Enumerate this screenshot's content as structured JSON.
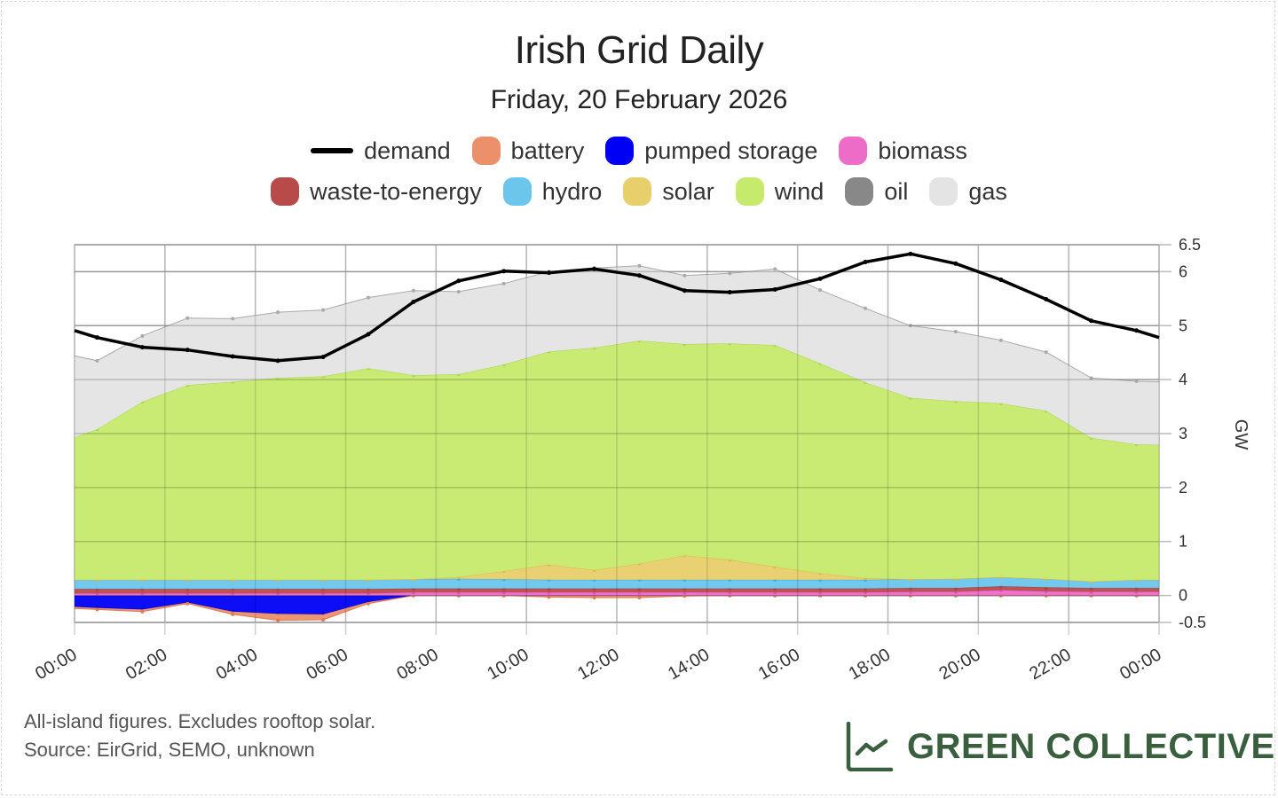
{
  "header": {
    "title": "Irish Grid Daily",
    "subtitle": "Friday, 20 February 2026"
  },
  "legend": [
    {
      "key": "demand",
      "label": "demand",
      "color": "#000000",
      "kind": "line"
    },
    {
      "key": "battery",
      "label": "battery",
      "color": "#ec906c",
      "kind": "area"
    },
    {
      "key": "pumped_storage",
      "label": "pumped storage",
      "color": "#0000f5",
      "kind": "area"
    },
    {
      "key": "biomass",
      "label": "biomass",
      "color": "#ec6cc8",
      "kind": "area"
    },
    {
      "key": "waste_to_energy",
      "label": "waste-to-energy",
      "color": "#b94a4a",
      "kind": "area"
    },
    {
      "key": "hydro",
      "label": "hydro",
      "color": "#6cc6ec",
      "kind": "area"
    },
    {
      "key": "solar",
      "label": "solar",
      "color": "#e8cf6c",
      "kind": "area"
    },
    {
      "key": "wind",
      "label": "wind",
      "color": "#c6ea6c",
      "kind": "area"
    },
    {
      "key": "oil",
      "label": "oil",
      "color": "#888888",
      "kind": "area"
    },
    {
      "key": "gas",
      "label": "gas",
      "color": "#e4e4e4",
      "kind": "area"
    }
  ],
  "chart_data": {
    "type": "area",
    "title": "Irish Grid Daily",
    "subtitle": "Friday, 20 February 2026",
    "xlabel": "",
    "ylabel": "GW",
    "ylim": [
      -0.5,
      6.5
    ],
    "yticks": [
      -0.5,
      0,
      1,
      2,
      3,
      4,
      5,
      6,
      6.5
    ],
    "ytick_labels": [
      "-0.5",
      "0",
      "1",
      "2",
      "3",
      "4",
      "5",
      "6",
      "6.5"
    ],
    "xlim_hours": [
      0,
      24
    ],
    "xtick_labels": [
      "00:00",
      "02:00",
      "04:00",
      "06:00",
      "08:00",
      "10:00",
      "12:00",
      "14:00",
      "16:00",
      "18:00",
      "20:00",
      "22:00",
      "00:00"
    ],
    "grid": true,
    "stacked": true,
    "legend_position": "top",
    "x_hours": [
      0,
      0.5,
      1.5,
      2.5,
      3.5,
      4.5,
      5.5,
      6.5,
      7.5,
      8.5,
      9.5,
      10.5,
      11.5,
      12.5,
      13.5,
      14.5,
      15.5,
      16.5,
      17.5,
      18.5,
      19.5,
      20.5,
      21.5,
      22.5,
      23.5,
      24
    ],
    "demand": [
      4.91,
      4.78,
      4.6,
      4.55,
      4.43,
      4.35,
      4.42,
      4.84,
      5.44,
      5.83,
      6.01,
      5.98,
      6.05,
      5.93,
      5.65,
      5.62,
      5.67,
      5.87,
      6.18,
      6.33,
      6.15,
      5.85,
      5.49,
      5.09,
      4.91,
      4.78
    ],
    "series": [
      {
        "name": "pumped storage",
        "key": "pumped_storage",
        "values": [
          -0.21,
          -0.23,
          -0.26,
          -0.13,
          -0.3,
          -0.34,
          -0.35,
          -0.12,
          0.0,
          0.0,
          0.0,
          0.0,
          0.0,
          0.0,
          0.0,
          0.0,
          0.0,
          0.0,
          0.0,
          0.0,
          0.0,
          0.0,
          0.0,
          0.0,
          0.0,
          0.0
        ]
      },
      {
        "name": "battery",
        "key": "battery",
        "values": [
          -0.03,
          -0.03,
          -0.04,
          -0.02,
          -0.05,
          -0.12,
          -0.1,
          -0.03,
          0.0,
          0.0,
          0.0,
          -0.03,
          -0.04,
          -0.04,
          -0.01,
          0.0,
          0.0,
          0.0,
          0.0,
          0.0,
          0.0,
          0.0,
          0.0,
          0.0,
          0.0,
          0.0
        ]
      },
      {
        "name": "biomass",
        "key": "biomass",
        "values": [
          0.04,
          0.04,
          0.04,
          0.04,
          0.04,
          0.04,
          0.04,
          0.04,
          0.06,
          0.06,
          0.06,
          0.06,
          0.06,
          0.06,
          0.06,
          0.06,
          0.06,
          0.06,
          0.06,
          0.07,
          0.07,
          0.1,
          0.08,
          0.07,
          0.07,
          0.07
        ]
      },
      {
        "name": "waste-to-energy",
        "key": "waste_to_energy",
        "values": [
          0.08,
          0.08,
          0.08,
          0.08,
          0.08,
          0.08,
          0.08,
          0.08,
          0.07,
          0.07,
          0.07,
          0.07,
          0.07,
          0.07,
          0.07,
          0.07,
          0.07,
          0.07,
          0.07,
          0.07,
          0.07,
          0.07,
          0.07,
          0.07,
          0.07,
          0.07
        ]
      },
      {
        "name": "hydro",
        "key": "hydro",
        "values": [
          0.17,
          0.17,
          0.17,
          0.17,
          0.17,
          0.17,
          0.17,
          0.17,
          0.17,
          0.18,
          0.17,
          0.16,
          0.16,
          0.16,
          0.16,
          0.16,
          0.16,
          0.16,
          0.16,
          0.16,
          0.17,
          0.17,
          0.16,
          0.12,
          0.15,
          0.15
        ]
      },
      {
        "name": "solar",
        "key": "solar",
        "values": [
          0.0,
          0.0,
          0.0,
          0.0,
          0.0,
          0.0,
          0.0,
          0.0,
          0.0,
          0.03,
          0.15,
          0.28,
          0.18,
          0.3,
          0.45,
          0.37,
          0.24,
          0.12,
          0.03,
          0.0,
          0.0,
          0.0,
          0.0,
          0.0,
          0.0,
          0.0
        ]
      },
      {
        "name": "wind",
        "key": "wind",
        "values": [
          2.64,
          2.79,
          3.3,
          3.61,
          3.67,
          3.74,
          3.77,
          3.92,
          3.78,
          3.76,
          3.83,
          3.95,
          4.12,
          4.13,
          3.92,
          4.01,
          4.11,
          3.89,
          3.63,
          3.36,
          3.29,
          3.22,
          3.11,
          2.66,
          2.51,
          2.5
        ]
      },
      {
        "name": "oil",
        "key": "oil",
        "values": [
          0.0,
          0.0,
          0.0,
          0.0,
          0.0,
          0.0,
          0.0,
          0.0,
          0.0,
          0.0,
          0.0,
          0.0,
          0.0,
          0.0,
          0.0,
          0.0,
          0.0,
          0.0,
          0.0,
          0.0,
          0.0,
          0.0,
          0.0,
          0.0,
          0.0,
          0.0
        ]
      },
      {
        "name": "gas",
        "key": "gas",
        "values": [
          1.51,
          1.27,
          1.22,
          1.24,
          1.17,
          1.22,
          1.23,
          1.31,
          1.57,
          1.53,
          1.5,
          1.48,
          1.48,
          1.39,
          1.27,
          1.3,
          1.41,
          1.36,
          1.37,
          1.34,
          1.29,
          1.17,
          1.09,
          1.11,
          1.17,
          1.17
        ]
      }
    ]
  },
  "footer": {
    "note": "All-island figures. Excludes rooftop solar.",
    "source": "Source: EirGrid, SEMO, unknown",
    "brand": "GREEN COLLECTIVE"
  }
}
